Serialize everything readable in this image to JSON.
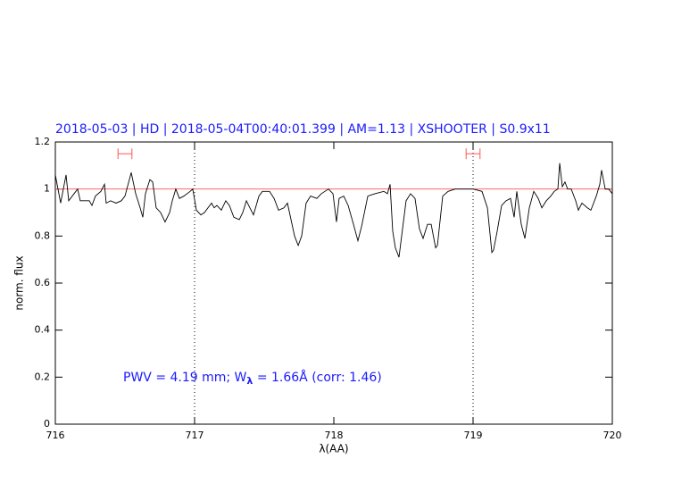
{
  "chart_data": {
    "type": "line",
    "title": "2018-05-03 | HD | 2018-05-04T00:40:01.399 | AM=1.13 | XSHOOTER | S0.9x11",
    "xlabel": "λ(AA)",
    "ylabel": "norm. flux",
    "annotation": [
      "PWV = 4.19 mm; W",
      "λ",
      " = 1.66Å  (corr: 1.46)"
    ],
    "xlim": [
      716,
      720
    ],
    "ylim": [
      0,
      1.2
    ],
    "xticks": [
      716,
      717,
      718,
      719,
      720
    ],
    "yticks": [
      0,
      0.2,
      0.4,
      0.6,
      0.8,
      1,
      1.2
    ],
    "hline": 1,
    "hline_color": "#ff6666",
    "vlines": [
      717,
      719
    ],
    "windows": [
      [
        716.45,
        716.55
      ],
      [
        718.95,
        719.05
      ]
    ],
    "window_y": 1.15,
    "window_color": "#ff5555",
    "title_color": "#1a1aff",
    "series": [
      {
        "color": "#000000",
        "x": [
          716.0,
          716.038,
          716.077,
          716.096,
          716.16,
          716.179,
          716.244,
          716.263,
          716.288,
          716.327,
          716.353,
          716.365,
          716.397,
          716.436,
          716.474,
          716.5,
          716.545,
          716.577,
          716.609,
          716.628,
          716.647,
          716.679,
          716.699,
          716.724,
          716.756,
          716.788,
          716.821,
          716.84,
          716.865,
          716.891,
          716.923,
          716.968,
          716.987,
          717.013,
          717.045,
          717.071,
          717.096,
          717.122,
          717.141,
          717.16,
          717.192,
          717.224,
          717.25,
          717.282,
          717.321,
          717.346,
          717.372,
          717.397,
          717.423,
          717.462,
          717.487,
          717.538,
          717.571,
          717.603,
          717.641,
          717.667,
          717.718,
          717.744,
          717.769,
          717.801,
          717.833,
          717.878,
          717.91,
          717.962,
          717.994,
          718.019,
          718.038,
          718.071,
          718.103,
          718.141,
          718.173,
          718.199,
          718.244,
          718.295,
          718.359,
          718.385,
          718.404,
          718.423,
          718.442,
          718.468,
          718.487,
          718.519,
          718.551,
          718.583,
          718.615,
          718.641,
          718.673,
          718.699,
          718.731,
          718.744,
          718.782,
          718.821,
          718.872,
          718.936,
          719.0,
          719.064,
          719.103,
          719.135,
          719.147,
          719.173,
          719.205,
          719.237,
          719.269,
          719.295,
          719.314,
          719.346,
          719.372,
          719.404,
          719.436,
          719.468,
          719.494,
          719.526,
          719.558,
          719.583,
          719.609,
          719.622,
          719.641,
          719.66,
          719.679,
          719.705,
          719.737,
          719.756,
          719.782,
          719.821,
          719.846,
          719.885,
          719.91,
          719.923,
          719.949,
          719.974,
          720.0
        ],
        "values": [
          1.06,
          0.94,
          1.06,
          0.95,
          1.0,
          0.95,
          0.95,
          0.93,
          0.97,
          0.99,
          1.02,
          0.94,
          0.95,
          0.94,
          0.95,
          0.97,
          1.07,
          0.98,
          0.92,
          0.88,
          0.98,
          1.04,
          1.03,
          0.92,
          0.9,
          0.86,
          0.9,
          0.95,
          1.0,
          0.96,
          0.97,
          0.99,
          1.0,
          0.91,
          0.89,
          0.9,
          0.92,
          0.94,
          0.92,
          0.93,
          0.91,
          0.95,
          0.93,
          0.88,
          0.87,
          0.9,
          0.95,
          0.92,
          0.89,
          0.97,
          0.99,
          0.99,
          0.96,
          0.91,
          0.92,
          0.94,
          0.8,
          0.76,
          0.8,
          0.94,
          0.97,
          0.96,
          0.98,
          1.0,
          0.98,
          0.86,
          0.96,
          0.97,
          0.93,
          0.85,
          0.78,
          0.84,
          0.97,
          0.98,
          0.99,
          0.98,
          1.02,
          0.82,
          0.75,
          0.71,
          0.8,
          0.95,
          0.98,
          0.96,
          0.83,
          0.79,
          0.85,
          0.85,
          0.75,
          0.76,
          0.97,
          0.99,
          1.0,
          1.0,
          1.0,
          0.99,
          0.92,
          0.73,
          0.74,
          0.82,
          0.93,
          0.95,
          0.96,
          0.88,
          0.99,
          0.85,
          0.79,
          0.92,
          0.99,
          0.96,
          0.92,
          0.95,
          0.97,
          0.99,
          1.0,
          1.11,
          1.01,
          1.03,
          1.0,
          1.0,
          0.95,
          0.91,
          0.94,
          0.92,
          0.91,
          0.97,
          1.02,
          1.08,
          1.0,
          1.0,
          0.98
        ]
      }
    ]
  }
}
